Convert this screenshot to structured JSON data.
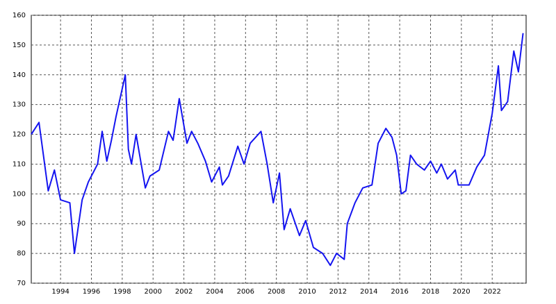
{
  "chart_data": {
    "type": "line",
    "x": [
      1992.1,
      1992.6,
      1993.2,
      1993.6,
      1994.0,
      1994.6,
      1994.9,
      1995.4,
      1995.8,
      1996.4,
      1996.7,
      1997.0,
      1997.3,
      1997.6,
      1998.2,
      1998.4,
      1998.6,
      1998.9,
      1999.5,
      1999.8,
      2000.4,
      2001.0,
      2001.3,
      2001.7,
      2002.2,
      2002.5,
      2002.9,
      2003.4,
      2003.8,
      2004.3,
      2004.5,
      2004.9,
      2005.5,
      2005.9,
      2006.3,
      2007.0,
      2007.4,
      2007.8,
      2008.2,
      2008.5,
      2008.9,
      2009.5,
      2009.9,
      2010.4,
      2011.0,
      2011.5,
      2011.9,
      2012.4,
      2012.6,
      2013.1,
      2013.6,
      2014.2,
      2014.6,
      2015.1,
      2015.5,
      2015.8,
      2016.1,
      2016.4,
      2016.7,
      2017.1,
      2017.6,
      2018.0,
      2018.4,
      2018.7,
      2019.1,
      2019.6,
      2019.8,
      2020.5,
      2021.0,
      2021.5,
      2022.0,
      2022.4,
      2022.6,
      2023.0,
      2023.4,
      2023.7,
      2024.0
    ],
    "series": [
      {
        "color": "#1414f0",
        "values": [
          120,
          124,
          101,
          108,
          98,
          97,
          80,
          98,
          104,
          110,
          121,
          111,
          118,
          126,
          140,
          115,
          110,
          120,
          102,
          106,
          108,
          121,
          118,
          132,
          117,
          121,
          117,
          111,
          104,
          109,
          103,
          106,
          116,
          110,
          117,
          121,
          110,
          97,
          107,
          88,
          95,
          86,
          91,
          82,
          80,
          76,
          80,
          78,
          90,
          97,
          102,
          103,
          117,
          122,
          119,
          113,
          100,
          101,
          113,
          110,
          108,
          111,
          107,
          110,
          105,
          108,
          103,
          103,
          109,
          113,
          127,
          143,
          128,
          131,
          148,
          141,
          154
        ]
      }
    ],
    "xlim": [
      1992.1,
      2024.2
    ],
    "xticks": [
      1994,
      1996,
      1998,
      2000,
      2002,
      2004,
      2006,
      2008,
      2010,
      2012,
      2014,
      2016,
      2018,
      2020,
      2022
    ],
    "ylim": [
      70,
      160
    ],
    "yticks": [
      70,
      80,
      90,
      100,
      110,
      120,
      130,
      140,
      150,
      160
    ],
    "grid": true
  }
}
